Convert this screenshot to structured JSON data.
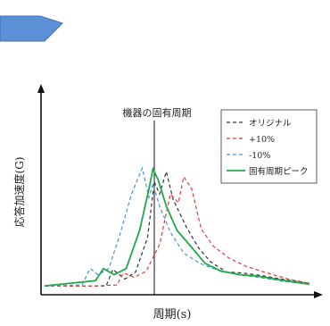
{
  "chart_data": {
    "type": "line",
    "title": "",
    "xlabel": "周期(s)",
    "ylabel": "応答加速度(G)",
    "annotation": "機器の固有周期",
    "grid": false,
    "legend_position": "top-right",
    "xlim": [
      0,
      10
    ],
    "ylim": [
      0,
      10
    ],
    "natural_period_x": 4.1,
    "series": [
      {
        "name": "オリジナル",
        "color": "#333333",
        "style": "dashed",
        "x": [
          0.0,
          1.9,
          2.3,
          2.55,
          3.0,
          3.4,
          3.85,
          4.1,
          4.3,
          4.55,
          4.8,
          5.3,
          5.75,
          6.2,
          6.8,
          7.4,
          8.1,
          9.0,
          9.9
        ],
        "y": [
          0.2,
          0.2,
          0.2,
          1.15,
          0.6,
          1.0,
          3.0,
          6.2,
          5.5,
          6.8,
          5.2,
          3.6,
          2.4,
          1.6,
          1.0,
          0.95,
          0.8,
          0.55,
          0.35
        ]
      },
      {
        "name": "+10%",
        "color": "#e53935",
        "style": "dashed",
        "x": [
          0.0,
          1.9,
          2.7,
          2.95,
          3.35,
          3.8,
          4.3,
          4.7,
          5.0,
          5.2,
          5.5,
          5.85,
          6.3,
          6.9,
          7.5,
          8.2,
          9.1,
          9.9
        ],
        "y": [
          0.2,
          0.2,
          0.25,
          0.95,
          0.7,
          1.05,
          2.6,
          5.5,
          5.0,
          6.5,
          5.8,
          3.5,
          2.5,
          1.8,
          1.35,
          1.0,
          0.6,
          0.35
        ]
      },
      {
        "name": "-10%",
        "color": "#4a90d9",
        "style": "dashed",
        "x": [
          0.0,
          1.4,
          1.7,
          2.0,
          2.4,
          2.8,
          3.25,
          3.65,
          3.9,
          4.05,
          4.3,
          4.7,
          5.2,
          5.8,
          6.5,
          7.2,
          8.0,
          9.0,
          9.9
        ],
        "y": [
          0.2,
          0.25,
          1.2,
          0.85,
          1.2,
          3.1,
          5.5,
          7.0,
          5.3,
          6.1,
          4.8,
          3.3,
          2.1,
          1.5,
          1.1,
          0.85,
          0.7,
          0.45,
          0.3
        ]
      },
      {
        "name": "固有周期ピーク",
        "color": "#1fa84a",
        "style": "solid",
        "x": [
          0.0,
          1.9,
          2.2,
          2.6,
          3.05,
          3.55,
          3.9,
          4.05,
          4.25,
          4.55,
          4.95,
          5.4,
          6.0,
          6.6,
          7.3,
          8.0,
          9.0,
          9.9
        ],
        "y": [
          0.2,
          0.5,
          1.2,
          0.85,
          1.2,
          3.4,
          5.8,
          6.95,
          6.3,
          4.8,
          3.4,
          2.6,
          1.5,
          1.05,
          0.85,
          0.75,
          0.5,
          0.3
        ]
      }
    ]
  }
}
